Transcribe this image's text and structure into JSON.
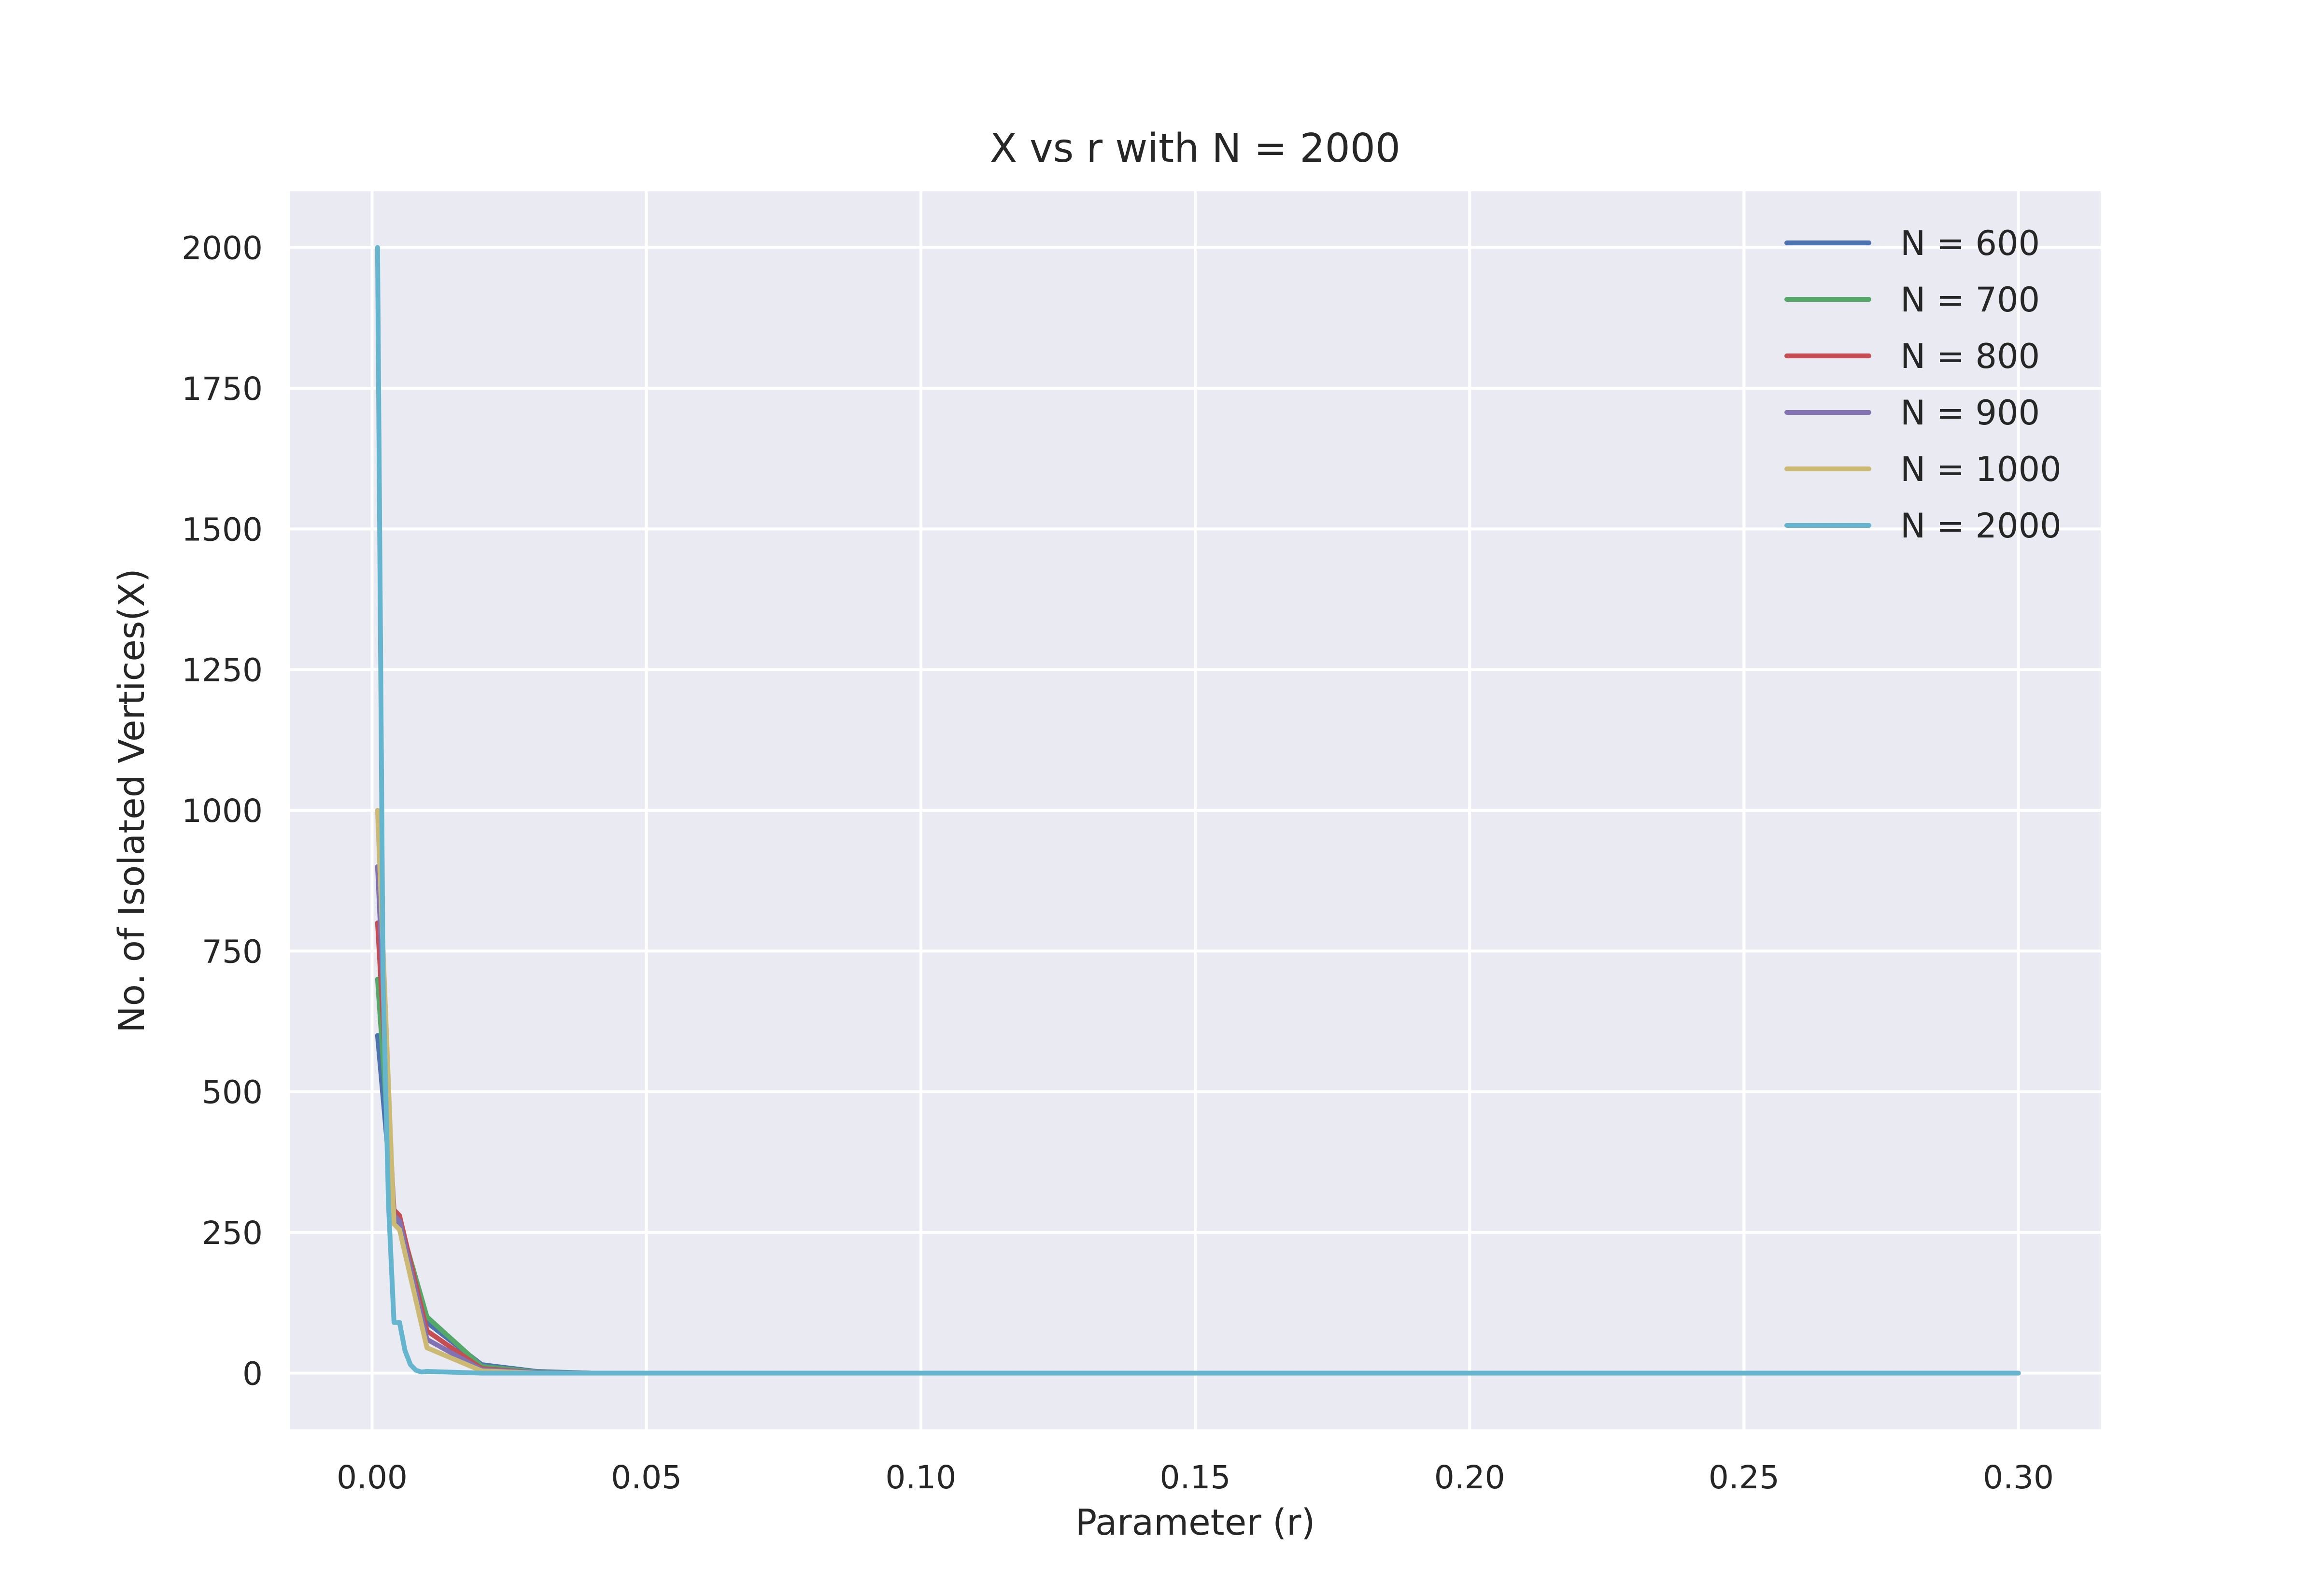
{
  "chart_data": {
    "type": "line",
    "title": "X vs r with N = 2000",
    "xlabel": "Parameter (r)",
    "ylabel": "No. of Isolated Vertices(X)",
    "xlim": [
      -0.015,
      0.315
    ],
    "ylim": [
      -100,
      2100
    ],
    "xticks": [
      0.0,
      0.05,
      0.1,
      0.15,
      0.2,
      0.25,
      0.3
    ],
    "xtick_labels": [
      "0.00",
      "0.05",
      "0.10",
      "0.15",
      "0.20",
      "0.25",
      "0.30"
    ],
    "yticks": [
      0,
      250,
      500,
      750,
      1000,
      1250,
      1500,
      1750,
      2000
    ],
    "ytick_labels": [
      "0",
      "250",
      "500",
      "750",
      "1000",
      "1250",
      "1500",
      "1750",
      "2000"
    ],
    "grid": true,
    "background": "#eaeaf2",
    "grid_color": "#ffffff",
    "legend_position": "top-right",
    "series": [
      {
        "name": "N = 600",
        "color": "#4c72b0",
        "x": [
          0.001,
          0.004,
          0.005,
          0.01,
          0.02,
          0.03,
          0.04,
          0.3
        ],
        "y": [
          600,
          270,
          260,
          90,
          15,
          3,
          0,
          0
        ]
      },
      {
        "name": "N = 700",
        "color": "#55a868",
        "x": [
          0.001,
          0.004,
          0.005,
          0.01,
          0.02,
          0.03,
          0.04,
          0.3
        ],
        "y": [
          700,
          275,
          270,
          100,
          12,
          2,
          0,
          0
        ]
      },
      {
        "name": "N = 800",
        "color": "#c44e52",
        "x": [
          0.001,
          0.004,
          0.005,
          0.01,
          0.02,
          0.03,
          0.04,
          0.3
        ],
        "y": [
          800,
          290,
          280,
          75,
          8,
          1,
          0,
          0
        ]
      },
      {
        "name": "N = 900",
        "color": "#8172b3",
        "x": [
          0.001,
          0.004,
          0.005,
          0.01,
          0.02,
          0.03,
          0.04,
          0.3
        ],
        "y": [
          900,
          280,
          270,
          60,
          6,
          1,
          0,
          0
        ]
      },
      {
        "name": "N = 1000",
        "color": "#ccb974",
        "x": [
          0.001,
          0.004,
          0.005,
          0.01,
          0.02,
          0.03,
          0.04,
          0.3
        ],
        "y": [
          1000,
          265,
          255,
          45,
          4,
          0,
          0,
          0
        ]
      },
      {
        "name": "N = 2000",
        "color": "#64b5cd",
        "x": [
          0.001,
          0.002,
          0.003,
          0.004,
          0.005,
          0.006,
          0.007,
          0.008,
          0.009,
          0.01,
          0.02,
          0.3
        ],
        "y": [
          2000,
          700,
          300,
          90,
          90,
          40,
          15,
          5,
          2,
          3,
          0,
          0
        ]
      }
    ]
  }
}
